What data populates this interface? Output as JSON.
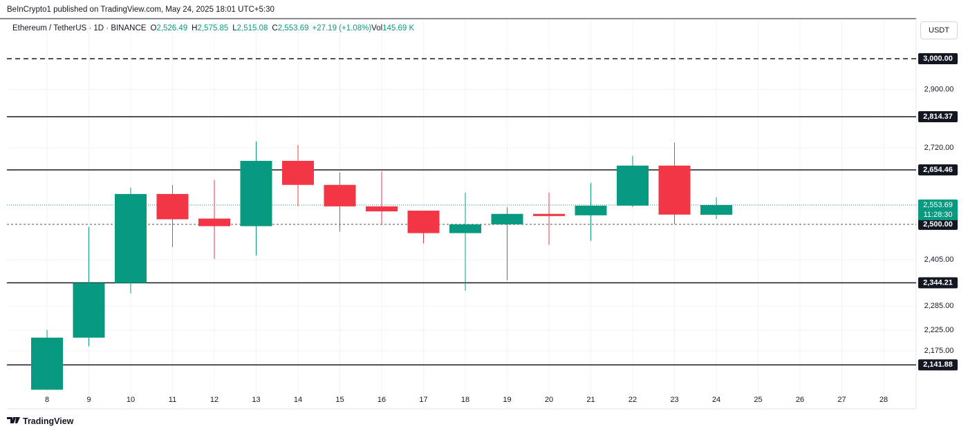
{
  "header": {
    "publisher": "BeInCrypto1 published on TradingView.com, May 24, 2025 18:01 UTC+5:30"
  },
  "chart_data": {
    "type": "candlestick",
    "symbol": "Ethereum / TetherUS · 1D · BINANCE",
    "legend": [
      {
        "key": "O",
        "value": "2,526.49"
      },
      {
        "key": "H",
        "value": "2,575.85"
      },
      {
        "key": "L",
        "value": "2,515.08"
      },
      {
        "key": "C",
        "value": "2,553.69"
      }
    ],
    "change": "+27.19 (+1.08%)",
    "volume": {
      "key": "Vol",
      "value": "145.69 K"
    },
    "currency": "USDT",
    "categories": [
      "8",
      "9",
      "10",
      "11",
      "12",
      "13",
      "14",
      "15",
      "16",
      "17",
      "18",
      "19",
      "20",
      "21",
      "22",
      "23",
      "24",
      "25",
      "26",
      "27",
      "28"
    ],
    "open": [
      2084,
      2207,
      2344,
      2585,
      2516,
      2495,
      2681,
      2611,
      2550,
      2538,
      2476,
      2500,
      2529,
      2525,
      2552,
      2667,
      2526.49,
      null,
      null,
      null,
      null
    ],
    "high": [
      2226,
      2493,
      2603,
      2611,
      2625,
      2739,
      2728,
      2647,
      2650,
      2538,
      2589,
      2548,
      2589,
      2617,
      2696,
      2735,
      2575.85,
      null,
      null,
      null,
      null
    ],
    "low": [
      2084,
      2186,
      2317,
      2438,
      2407,
      2416,
      2550,
      2480,
      2500,
      2448,
      2324,
      2351,
      2444,
      2455,
      2548,
      2500,
      2515.08,
      null,
      null,
      null,
      null
    ],
    "close": [
      2207,
      2344,
      2585,
      2514,
      2495,
      2681,
      2611,
      2550,
      2536,
      2476,
      2500,
      2529,
      2523,
      2552,
      2667,
      2527,
      2553.69,
      null,
      null,
      null,
      null
    ],
    "up_color": "#089981",
    "down_color": "#f23645",
    "log_scale": true,
    "grid": true,
    "ylim": [
      2083,
      3128
    ],
    "yticks": [
      {
        "value": 2900,
        "label": "2,900.00"
      },
      {
        "value": 2720,
        "label": "2,720.00"
      },
      {
        "value": 2405,
        "label": "2,405.00"
      },
      {
        "value": 2285,
        "label": "2,285.00"
      },
      {
        "value": 2225,
        "label": "2,225.00"
      },
      {
        "value": 2175,
        "label": "2,175.00"
      }
    ],
    "levels": [
      {
        "value": 3000,
        "label": "3,000.00",
        "style": "dashed"
      },
      {
        "value": 2814.37,
        "label": "2,814.37",
        "style": "solid"
      },
      {
        "value": 2654.46,
        "label": "2,654.46",
        "style": "solid"
      },
      {
        "value": 2500,
        "label": "2,500.00",
        "style": "dotted"
      },
      {
        "value": 2344.21,
        "label": "2,344.21",
        "style": "solid"
      },
      {
        "value": 2141.88,
        "label": "2,141.88",
        "style": "solid"
      }
    ],
    "last_price": {
      "value": 2553.69,
      "label": "2,553.69",
      "countdown": "11:28:30"
    }
  },
  "footer": {
    "brand": "TradingView"
  }
}
